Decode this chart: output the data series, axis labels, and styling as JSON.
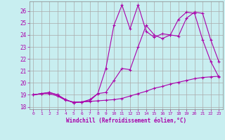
{
  "xlabel": "Windchill (Refroidissement éolien,°C)",
  "bg_color": "#c8eef0",
  "line_color": "#aa00aa",
  "grid_color": "#aaaaaa",
  "xlim": [
    -0.5,
    23.5
  ],
  "ylim": [
    17.8,
    26.8
  ],
  "yticks": [
    18,
    19,
    20,
    21,
    22,
    23,
    24,
    25,
    26
  ],
  "xticks": [
    0,
    1,
    2,
    3,
    4,
    5,
    6,
    7,
    8,
    9,
    10,
    11,
    12,
    13,
    14,
    15,
    16,
    17,
    18,
    19,
    20,
    21,
    22,
    23
  ],
  "line1_x": [
    0,
    1,
    2,
    3,
    4,
    5,
    6,
    7,
    8,
    9,
    10,
    11,
    12,
    13,
    14,
    15,
    16,
    17,
    18,
    19,
    20,
    21,
    22,
    23
  ],
  "line1_y": [
    19.0,
    19.1,
    19.1,
    18.9,
    18.55,
    18.4,
    18.4,
    18.45,
    18.5,
    18.55,
    18.6,
    18.7,
    18.9,
    19.1,
    19.3,
    19.55,
    19.7,
    19.9,
    20.05,
    20.2,
    20.35,
    20.45,
    20.5,
    20.55
  ],
  "line2_x": [
    0,
    1,
    2,
    3,
    4,
    5,
    6,
    7,
    8,
    9,
    10,
    11,
    12,
    13,
    14,
    15,
    16,
    17,
    18,
    19,
    20,
    21,
    22,
    23
  ],
  "line2_y": [
    19.0,
    19.1,
    19.2,
    19.0,
    18.6,
    18.35,
    18.4,
    18.5,
    19.1,
    19.2,
    20.2,
    21.2,
    21.1,
    23.0,
    24.8,
    24.0,
    23.7,
    24.0,
    23.9,
    25.4,
    25.9,
    25.8,
    23.6,
    21.8
  ],
  "line3_x": [
    0,
    1,
    2,
    3,
    4,
    5,
    6,
    7,
    8,
    9,
    10,
    11,
    12,
    13,
    14,
    15,
    16,
    17,
    18,
    19,
    20,
    21,
    22,
    23
  ],
  "line3_y": [
    19.0,
    19.1,
    19.2,
    19.0,
    18.6,
    18.35,
    18.4,
    18.6,
    19.1,
    21.2,
    24.8,
    26.5,
    24.5,
    26.5,
    24.3,
    23.8,
    24.1,
    24.0,
    25.3,
    25.9,
    25.8,
    23.6,
    21.8,
    20.5
  ]
}
